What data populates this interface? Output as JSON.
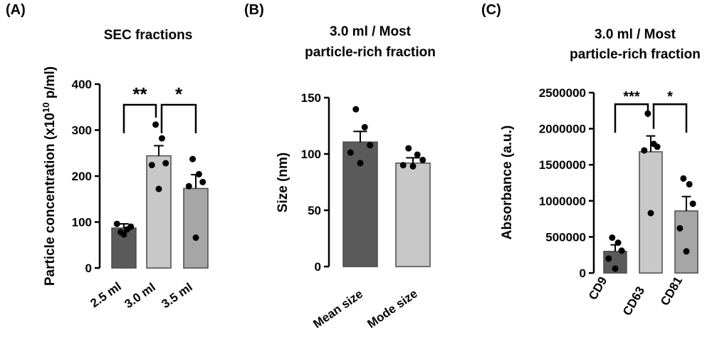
{
  "chart_data": [
    {
      "panel": "(A)",
      "type": "bar",
      "title": "SEC fractions",
      "ylabel": "Particle concentration (x10",
      "ylabel_sup": "10",
      "ylabel_unit": " p/ml)",
      "ylim": [
        0,
        400
      ],
      "yticks": [
        "0",
        "100",
        "200",
        "300",
        "400"
      ],
      "categories": [
        "2.5 ml",
        "3.0 ml",
        "3.5 ml"
      ],
      "values": [
        87,
        244,
        173
      ],
      "sem": [
        9,
        22,
        30
      ],
      "bar_colors": [
        "#5a5a5a",
        "#c8c8c8",
        "#a6a6a6"
      ],
      "points": [
        [
          78,
          84,
          90,
          96,
          73
        ],
        [
          312,
          282,
          228,
          224,
          172
        ],
        [
          237,
          204,
          187,
          178,
          66
        ]
      ],
      "significance": [
        {
          "from": 0,
          "to": 1,
          "label": "**",
          "y": 355
        },
        {
          "from": 1,
          "to": 2,
          "label": "*",
          "y": 355
        }
      ]
    },
    {
      "panel": "(B)",
      "type": "bar",
      "title": [
        "3.0 ml / Most",
        "particle-rich fraction"
      ],
      "ylabel": "Size (nm)",
      "ylim": [
        0,
        160
      ],
      "yticks": [
        "0",
        "50",
        "100",
        "150"
      ],
      "categories": [
        "Mean size",
        "Mode size"
      ],
      "values": [
        118,
        98
      ],
      "sem": [
        10,
        5
      ],
      "bar_colors": [
        "#5a5a5a",
        "#c8c8c8"
      ],
      "points": [
        [
          149,
          132,
          115,
          108,
          98
        ],
        [
          112,
          106,
          101,
          96,
          95
        ]
      ]
    },
    {
      "panel": "(C)",
      "type": "bar",
      "title": [
        "3.0 ml / Most",
        "particle-rich fraction"
      ],
      "ylabel": "Absorbance (a.u.)",
      "ylim": [
        0,
        2500000
      ],
      "yticks": [
        "0",
        "500000",
        "1000000",
        "1500000",
        "2000000",
        "2500000"
      ],
      "categories": [
        "CD9",
        "CD63",
        "CD81"
      ],
      "values": [
        300000,
        1680000,
        860000
      ],
      "sem": [
        90000,
        220000,
        200000
      ],
      "bar_colors": [
        "#5a5a5a",
        "#c8c8c8",
        "#a6a6a6"
      ],
      "points": [
        [
          490000,
          420000,
          310000,
          200000,
          60000
        ],
        [
          2210000,
          1790000,
          1750000,
          1700000,
          830000
        ],
        [
          1310000,
          1230000,
          960000,
          620000,
          300000
        ]
      ],
      "significance": [
        {
          "from": 0,
          "to": 1,
          "label": "***",
          "y": 2340000
        },
        {
          "from": 1,
          "to": 2,
          "label": "*",
          "y": 2340000
        }
      ]
    }
  ]
}
